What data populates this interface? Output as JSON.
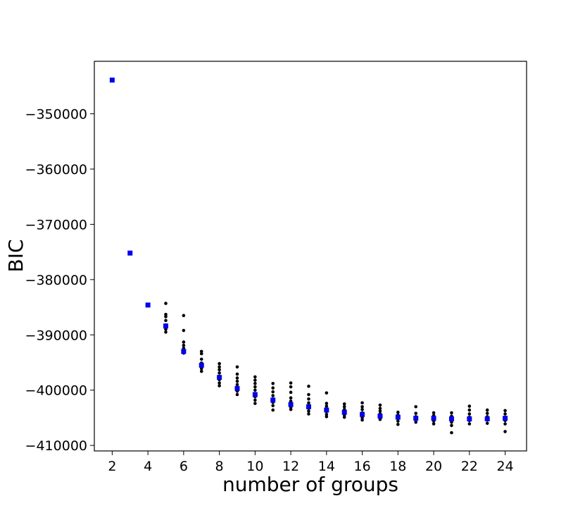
{
  "chart_data": {
    "type": "scatter",
    "title": "",
    "xlabel": "number of groups",
    "ylabel": "BIC",
    "xlim": [
      1.0,
      25.2
    ],
    "ylim": [
      -411000,
      -340500
    ],
    "xticks": [
      2,
      4,
      6,
      8,
      10,
      12,
      14,
      16,
      18,
      20,
      22,
      24
    ],
    "yticks": [
      -410000,
      -400000,
      -390000,
      -380000,
      -370000,
      -360000,
      -350000
    ],
    "ytick_labels": [
      "−410000",
      "−400000",
      "−390000",
      "−380000",
      "−370000",
      "−360000",
      "−350000"
    ],
    "grid": false,
    "colors": {
      "individual_runs": "#000000",
      "best_per_k": "#0000ee"
    },
    "series": [
      {
        "marker": "dot",
        "color": "#000000",
        "points": [
          [
            5,
            -384300
          ],
          [
            5,
            -386300
          ],
          [
            5,
            -386700
          ],
          [
            5,
            -387400
          ],
          [
            5,
            -388200
          ],
          [
            5,
            -389000
          ],
          [
            5,
            -389500
          ],
          [
            6,
            -386500
          ],
          [
            6,
            -389200
          ],
          [
            6,
            -391300
          ],
          [
            6,
            -391900
          ],
          [
            6,
            -392400
          ],
          [
            6,
            -392800
          ],
          [
            6,
            -393300
          ],
          [
            7,
            -393000
          ],
          [
            7,
            -393400
          ],
          [
            7,
            -394400
          ],
          [
            7,
            -395100
          ],
          [
            7,
            -395600
          ],
          [
            7,
            -396100
          ],
          [
            7,
            -396600
          ],
          [
            8,
            -395200
          ],
          [
            8,
            -395800
          ],
          [
            8,
            -396300
          ],
          [
            8,
            -396900
          ],
          [
            8,
            -397500
          ],
          [
            8,
            -398100
          ],
          [
            8,
            -398700
          ],
          [
            8,
            -399200
          ],
          [
            9,
            -395800
          ],
          [
            9,
            -397100
          ],
          [
            9,
            -397800
          ],
          [
            9,
            -398400
          ],
          [
            9,
            -399000
          ],
          [
            9,
            -399600
          ],
          [
            9,
            -400200
          ],
          [
            9,
            -400800
          ],
          [
            10,
            -397600
          ],
          [
            10,
            -398200
          ],
          [
            10,
            -398800
          ],
          [
            10,
            -399400
          ],
          [
            10,
            -400000
          ],
          [
            10,
            -400600
          ],
          [
            10,
            -401200
          ],
          [
            10,
            -401800
          ],
          [
            10,
            -402400
          ],
          [
            11,
            -398800
          ],
          [
            11,
            -399600
          ],
          [
            11,
            -400300
          ],
          [
            11,
            -401000
          ],
          [
            11,
            -401600
          ],
          [
            11,
            -402200
          ],
          [
            11,
            -402800
          ],
          [
            11,
            -403600
          ],
          [
            12,
            -398700
          ],
          [
            12,
            -399400
          ],
          [
            12,
            -400400
          ],
          [
            12,
            -401400
          ],
          [
            12,
            -402000
          ],
          [
            12,
            -402600
          ],
          [
            12,
            -403100
          ],
          [
            12,
            -403500
          ],
          [
            13,
            -399300
          ],
          [
            13,
            -400800
          ],
          [
            13,
            -401600
          ],
          [
            13,
            -402300
          ],
          [
            13,
            -402800
          ],
          [
            13,
            -403300
          ],
          [
            13,
            -403800
          ],
          [
            13,
            -404300
          ],
          [
            14,
            -400500
          ],
          [
            14,
            -402400
          ],
          [
            14,
            -402900
          ],
          [
            14,
            -403400
          ],
          [
            14,
            -403900
          ],
          [
            14,
            -404400
          ],
          [
            14,
            -404800
          ],
          [
            15,
            -402500
          ],
          [
            15,
            -403000
          ],
          [
            15,
            -403500
          ],
          [
            15,
            -404000
          ],
          [
            15,
            -404500
          ],
          [
            15,
            -404900
          ],
          [
            16,
            -402300
          ],
          [
            16,
            -403000
          ],
          [
            16,
            -403500
          ],
          [
            16,
            -404100
          ],
          [
            16,
            -404600
          ],
          [
            16,
            -405000
          ],
          [
            16,
            -405400
          ],
          [
            17,
            -402700
          ],
          [
            17,
            -403300
          ],
          [
            17,
            -403800
          ],
          [
            17,
            -404300
          ],
          [
            17,
            -404800
          ],
          [
            17,
            -405300
          ],
          [
            18,
            -404000
          ],
          [
            18,
            -404500
          ],
          [
            18,
            -405000
          ],
          [
            18,
            -405600
          ],
          [
            18,
            -406200
          ],
          [
            19,
            -403000
          ],
          [
            19,
            -404200
          ],
          [
            19,
            -404800
          ],
          [
            19,
            -405300
          ],
          [
            19,
            -405800
          ],
          [
            20,
            -404100
          ],
          [
            20,
            -404600
          ],
          [
            20,
            -405100
          ],
          [
            20,
            -405600
          ],
          [
            20,
            -406100
          ],
          [
            21,
            -404100
          ],
          [
            21,
            -404700
          ],
          [
            21,
            -405200
          ],
          [
            21,
            -405800
          ],
          [
            21,
            -406400
          ],
          [
            21,
            -407700
          ],
          [
            22,
            -402900
          ],
          [
            22,
            -403600
          ],
          [
            22,
            -404300
          ],
          [
            22,
            -404900
          ],
          [
            22,
            -405500
          ],
          [
            22,
            -406100
          ],
          [
            23,
            -403600
          ],
          [
            23,
            -404200
          ],
          [
            23,
            -404800
          ],
          [
            23,
            -405400
          ],
          [
            23,
            -406000
          ],
          [
            24,
            -403700
          ],
          [
            24,
            -404300
          ],
          [
            24,
            -404900
          ],
          [
            24,
            -405500
          ],
          [
            24,
            -406100
          ],
          [
            24,
            -407500
          ]
        ]
      },
      {
        "marker": "square",
        "color": "#0000ee",
        "points": [
          [
            2,
            -343900
          ],
          [
            3,
            -375200
          ],
          [
            4,
            -384600
          ],
          [
            5,
            -388400
          ],
          [
            6,
            -393000
          ],
          [
            7,
            -395500
          ],
          [
            8,
            -397700
          ],
          [
            9,
            -399700
          ],
          [
            10,
            -400800
          ],
          [
            11,
            -401800
          ],
          [
            12,
            -402600
          ],
          [
            13,
            -403000
          ],
          [
            14,
            -403600
          ],
          [
            15,
            -404000
          ],
          [
            16,
            -404400
          ],
          [
            17,
            -404700
          ],
          [
            18,
            -404900
          ],
          [
            19,
            -405100
          ],
          [
            20,
            -405100
          ],
          [
            21,
            -405200
          ],
          [
            22,
            -405200
          ],
          [
            23,
            -405200
          ],
          [
            24,
            -405100
          ]
        ]
      }
    ]
  }
}
